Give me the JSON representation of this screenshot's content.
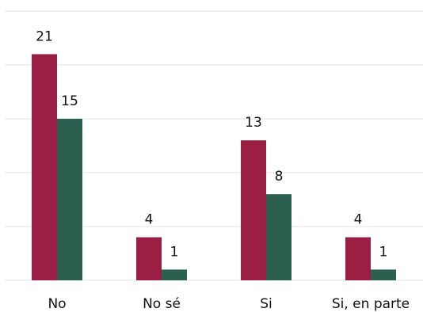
{
  "chart_data": {
    "type": "bar",
    "categories": [
      "No",
      "No sé",
      "Si",
      "Si, en parte"
    ],
    "series": [
      {
        "color": "#9b1f45",
        "values": [
          21,
          4,
          13,
          4
        ]
      },
      {
        "color": "#2b5f4f",
        "values": [
          15,
          1,
          8,
          1
        ]
      }
    ],
    "ylim": [
      0,
      25
    ],
    "yticks": [
      0,
      5,
      10,
      15,
      20,
      25
    ],
    "grid": true
  }
}
